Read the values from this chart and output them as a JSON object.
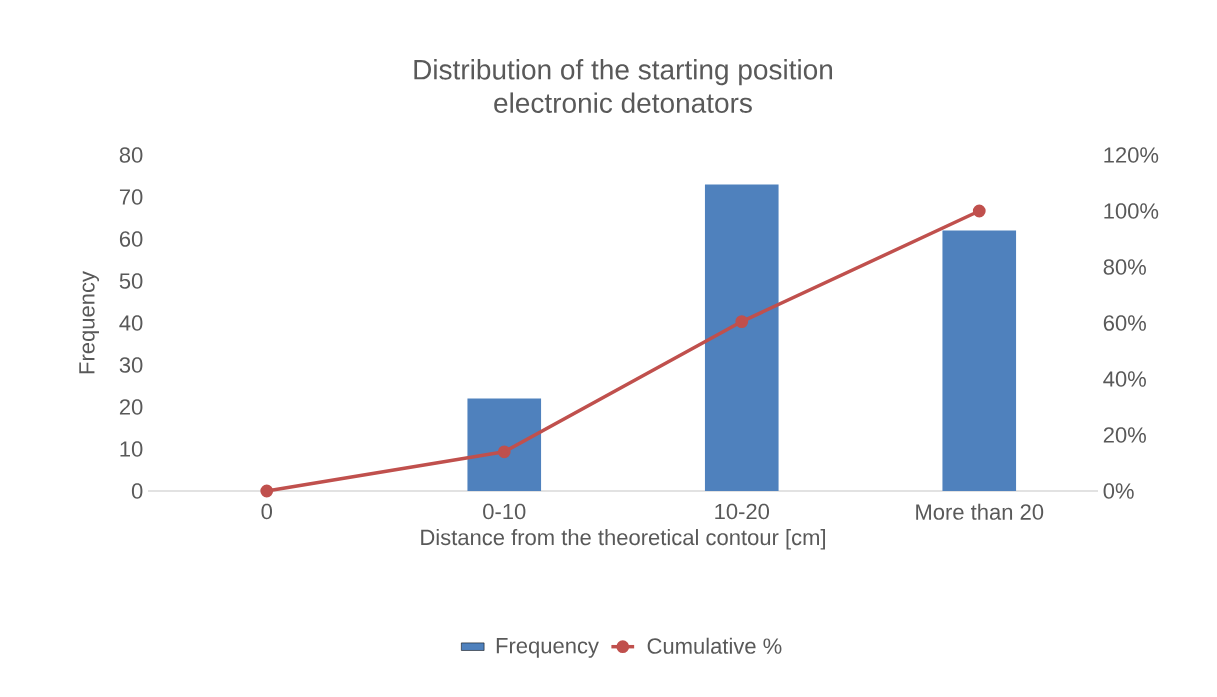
{
  "chart_data": {
    "type": "bar",
    "title": "Distribution of the starting position electronic detonators",
    "xlabel": "Distance from the theoretical contour [cm]",
    "ylabel": "Frequency",
    "categories": [
      "0",
      "0-10",
      "10-20",
      "More than 20"
    ],
    "series": [
      {
        "name": "Frequency",
        "color": "#4f81bd",
        "values": [
          0,
          22,
          73,
          62
        ]
      },
      {
        "name": "Cumulative %",
        "type": "line",
        "axis": "y2",
        "color": "#c0504d",
        "values": [
          0,
          14,
          60.5,
          100
        ]
      }
    ],
    "ylim": [
      0,
      80
    ],
    "yticks": [
      0,
      10,
      20,
      30,
      40,
      50,
      60,
      70,
      80
    ],
    "y2lim": [
      0,
      120
    ],
    "y2ticks": [
      {
        "value": 0,
        "label": "0%"
      },
      {
        "value": 20,
        "label": "20%"
      },
      {
        "value": 40,
        "label": "40%"
      },
      {
        "value": 60,
        "label": "60%"
      },
      {
        "value": 80,
        "label": "80%"
      },
      {
        "value": 100,
        "label": "100%"
      },
      {
        "value": 120,
        "label": "120%"
      }
    ],
    "legend": "bottom",
    "marker": "circle",
    "grid": false
  }
}
